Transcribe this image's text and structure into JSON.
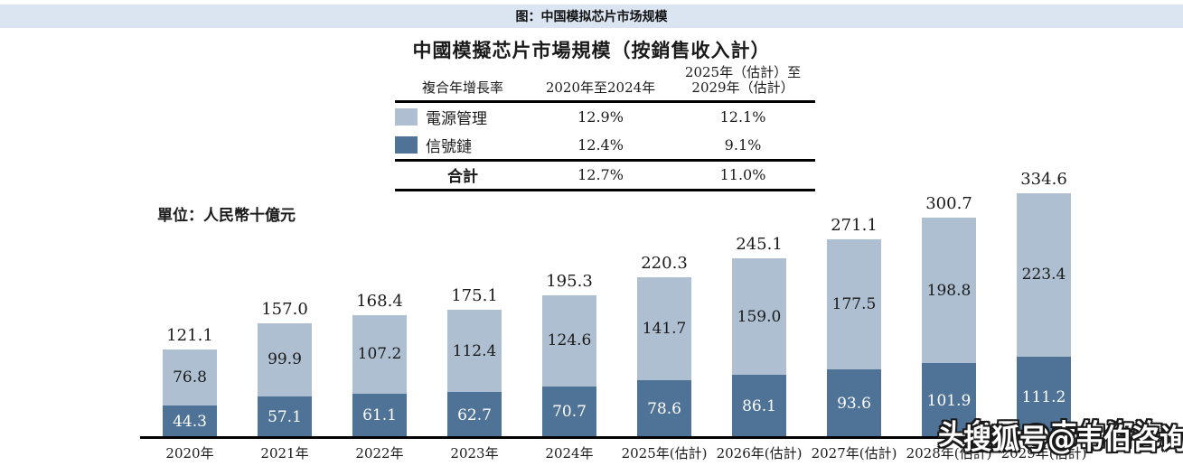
{
  "banner": {
    "label": "图：中国模拟芯片市场规模"
  },
  "table": {
    "title": "中國模擬芯片市場規模（按銷售收入計）",
    "col1_header": "複合年增長率",
    "col2_header": "2020年至2024年",
    "col3_header": "2025年（估計）至\n2029年（估計）",
    "rows": [
      {
        "label": "電源管理",
        "cagr_2020_2024": "12.9%",
        "cagr_2025_2029": "12.1%"
      },
      {
        "label": "信號鏈",
        "cagr_2020_2024": "12.4%",
        "cagr_2025_2029": "9.1%"
      }
    ],
    "total_row": {
      "label": "合計",
      "cagr_2020_2024": "12.7%",
      "cagr_2025_2029": "11.0%"
    }
  },
  "unit_label": "單位：人民幣十億元",
  "chart_data": {
    "type": "bar",
    "stacked": true,
    "title": "中國模擬芯片市場規模（按銷售收入計）",
    "unit_label": "單位：人民幣十億元",
    "categories": [
      "2020年",
      "2021年",
      "2022年",
      "2023年",
      "2024年",
      "2025年(估計)",
      "2026年(估計)",
      "2027年(估計)",
      "2028年(估計)",
      "2029年(估計)"
    ],
    "series": [
      {
        "name": "電源管理",
        "color": "#aebfd2",
        "values": [
          76.8,
          99.9,
          107.2,
          112.4,
          124.6,
          141.7,
          159.0,
          177.5,
          198.8,
          223.4
        ]
      },
      {
        "name": "信號鏈",
        "color": "#4f7397",
        "values": [
          44.3,
          57.1,
          61.1,
          62.7,
          70.7,
          78.6,
          86.1,
          93.6,
          101.9,
          111.2
        ]
      }
    ],
    "totals": [
      121.1,
      157.0,
      168.4,
      175.1,
      195.3,
      220.3,
      245.1,
      271.1,
      300.7,
      334.6
    ],
    "ylim": [
      0,
      340
    ],
    "grid": false,
    "legend_position": "table-left-swatches"
  },
  "watermark": {
    "line1": "头条号@韦伯咨询",
    "line2": "搜狐号@韦伯咨询"
  },
  "colors": {
    "banner_bg": "#dbe5f2",
    "power_mgmt": "#aebfd2",
    "signal_chain": "#4f7397"
  }
}
